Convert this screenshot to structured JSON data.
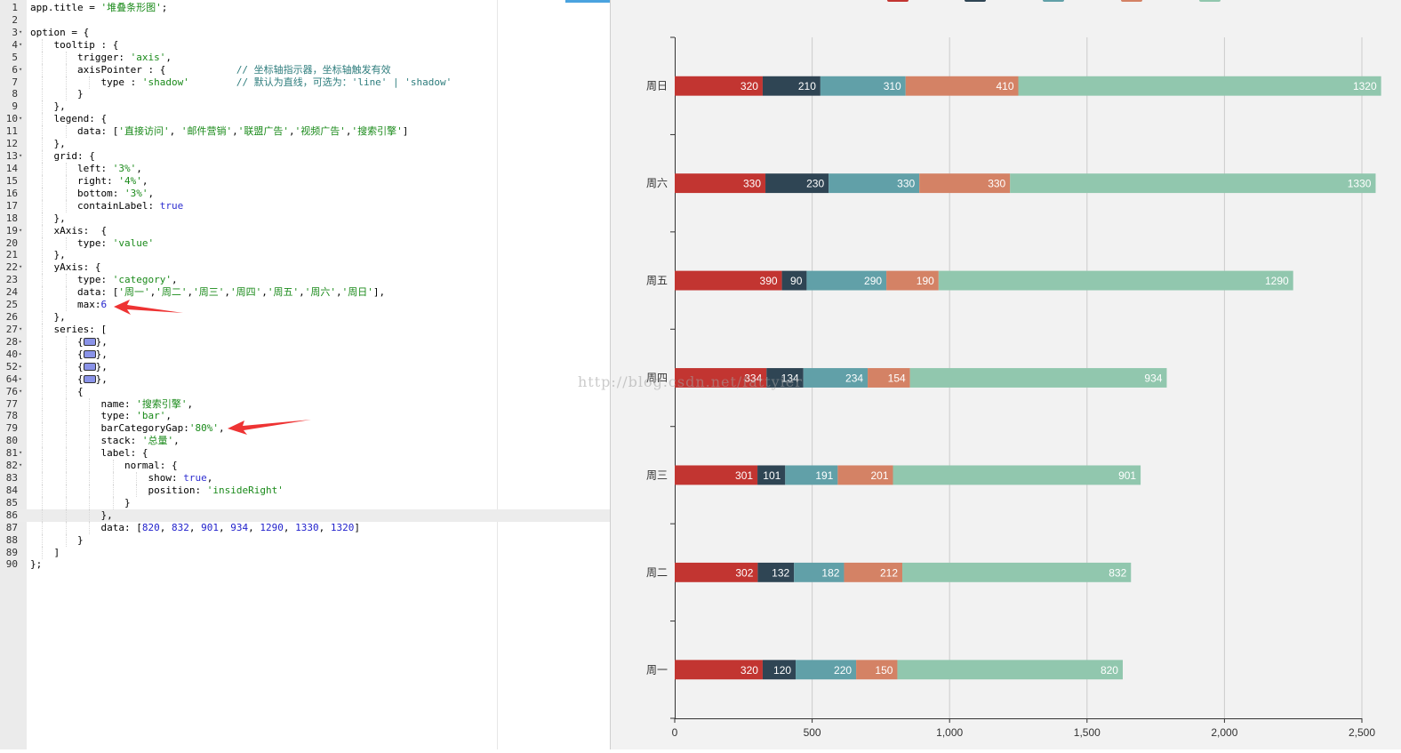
{
  "editor": {
    "lines": [
      {
        "n": "1",
        "fold": "",
        "ind": 0,
        "t": [
          {
            "x": "app.title = "
          },
          {
            "x": "'堆叠条形图'",
            "c": "s"
          },
          {
            "x": ";"
          }
        ]
      },
      {
        "n": "2",
        "fold": "",
        "ind": 0,
        "t": []
      },
      {
        "n": "3",
        "fold": "▾",
        "ind": 0,
        "t": [
          {
            "x": "option = {"
          }
        ]
      },
      {
        "n": "4",
        "fold": "▾",
        "ind": 1,
        "t": [
          {
            "x": "tooltip : {"
          }
        ]
      },
      {
        "n": "5",
        "fold": "",
        "ind": 2,
        "t": [
          {
            "x": "trigger: "
          },
          {
            "x": "'axis'",
            "c": "s"
          },
          {
            "x": ","
          }
        ]
      },
      {
        "n": "6",
        "fold": "▾",
        "ind": 2,
        "t": [
          {
            "x": "axisPointer : {            "
          },
          {
            "x": "// 坐标轴指示器，坐标轴触发有效",
            "c": "c"
          }
        ]
      },
      {
        "n": "7",
        "fold": "",
        "ind": 3,
        "t": [
          {
            "x": "type : "
          },
          {
            "x": "'shadow'",
            "c": "s"
          },
          {
            "x": "        "
          },
          {
            "x": "// 默认为直线，可选为：'line' | 'shadow'",
            "c": "c"
          }
        ]
      },
      {
        "n": "8",
        "fold": "",
        "ind": 2,
        "t": [
          {
            "x": "}"
          }
        ]
      },
      {
        "n": "9",
        "fold": "",
        "ind": 1,
        "t": [
          {
            "x": "},"
          }
        ]
      },
      {
        "n": "10",
        "fold": "▾",
        "ind": 1,
        "t": [
          {
            "x": "legend: {"
          }
        ]
      },
      {
        "n": "11",
        "fold": "",
        "ind": 2,
        "t": [
          {
            "x": "data: ["
          },
          {
            "x": "'直接访问'",
            "c": "s"
          },
          {
            "x": ", "
          },
          {
            "x": "'邮件营销'",
            "c": "s"
          },
          {
            "x": ","
          },
          {
            "x": "'联盟广告'",
            "c": "s"
          },
          {
            "x": ","
          },
          {
            "x": "'视频广告'",
            "c": "s"
          },
          {
            "x": ","
          },
          {
            "x": "'搜索引擎'",
            "c": "s"
          },
          {
            "x": "]"
          }
        ]
      },
      {
        "n": "12",
        "fold": "",
        "ind": 1,
        "t": [
          {
            "x": "},"
          }
        ]
      },
      {
        "n": "13",
        "fold": "▾",
        "ind": 1,
        "t": [
          {
            "x": "grid: {"
          }
        ]
      },
      {
        "n": "14",
        "fold": "",
        "ind": 2,
        "t": [
          {
            "x": "left: "
          },
          {
            "x": "'3%'",
            "c": "s"
          },
          {
            "x": ","
          }
        ]
      },
      {
        "n": "15",
        "fold": "",
        "ind": 2,
        "t": [
          {
            "x": "right: "
          },
          {
            "x": "'4%'",
            "c": "s"
          },
          {
            "x": ","
          }
        ]
      },
      {
        "n": "16",
        "fold": "",
        "ind": 2,
        "t": [
          {
            "x": "bottom: "
          },
          {
            "x": "'3%'",
            "c": "s"
          },
          {
            "x": ","
          }
        ]
      },
      {
        "n": "17",
        "fold": "",
        "ind": 2,
        "t": [
          {
            "x": "containLabel: "
          },
          {
            "x": "true",
            "c": "k"
          }
        ]
      },
      {
        "n": "18",
        "fold": "",
        "ind": 1,
        "t": [
          {
            "x": "},"
          }
        ]
      },
      {
        "n": "19",
        "fold": "▾",
        "ind": 1,
        "t": [
          {
            "x": "xAxis:  {"
          }
        ]
      },
      {
        "n": "20",
        "fold": "",
        "ind": 2,
        "t": [
          {
            "x": "type: "
          },
          {
            "x": "'value'",
            "c": "s"
          }
        ]
      },
      {
        "n": "21",
        "fold": "",
        "ind": 1,
        "t": [
          {
            "x": "},"
          }
        ]
      },
      {
        "n": "22",
        "fold": "▾",
        "ind": 1,
        "t": [
          {
            "x": "yAxis: {"
          }
        ]
      },
      {
        "n": "23",
        "fold": "",
        "ind": 2,
        "t": [
          {
            "x": "type: "
          },
          {
            "x": "'category'",
            "c": "s"
          },
          {
            "x": ","
          }
        ]
      },
      {
        "n": "24",
        "fold": "",
        "ind": 2,
        "t": [
          {
            "x": "data: ["
          },
          {
            "x": "'周一'",
            "c": "s"
          },
          {
            "x": ","
          },
          {
            "x": "'周二'",
            "c": "s"
          },
          {
            "x": ","
          },
          {
            "x": "'周三'",
            "c": "s"
          },
          {
            "x": ","
          },
          {
            "x": "'周四'",
            "c": "s"
          },
          {
            "x": ","
          },
          {
            "x": "'周五'",
            "c": "s"
          },
          {
            "x": ","
          },
          {
            "x": "'周六'",
            "c": "s"
          },
          {
            "x": ","
          },
          {
            "x": "'周日'",
            "c": "s"
          },
          {
            "x": "],"
          }
        ]
      },
      {
        "n": "25",
        "fold": "",
        "ind": 2,
        "t": [
          {
            "x": "max:"
          },
          {
            "x": "6",
            "c": "n"
          }
        ]
      },
      {
        "n": "26",
        "fold": "",
        "ind": 1,
        "t": [
          {
            "x": "},"
          }
        ]
      },
      {
        "n": "27",
        "fold": "▾",
        "ind": 1,
        "t": [
          {
            "x": "series: ["
          }
        ]
      },
      {
        "n": "28",
        "fold": "▸",
        "ind": 2,
        "t": [
          {
            "x": "{"
          },
          {
            "x": "",
            "c": "fw"
          },
          {
            "x": "},"
          }
        ]
      },
      {
        "n": "40",
        "fold": "▸",
        "ind": 2,
        "t": [
          {
            "x": "{"
          },
          {
            "x": "",
            "c": "fw"
          },
          {
            "x": "},"
          }
        ]
      },
      {
        "n": "52",
        "fold": "▸",
        "ind": 2,
        "t": [
          {
            "x": "{"
          },
          {
            "x": "",
            "c": "fw"
          },
          {
            "x": "},"
          }
        ]
      },
      {
        "n": "64",
        "fold": "▸",
        "ind": 2,
        "t": [
          {
            "x": "{"
          },
          {
            "x": "",
            "c": "fw"
          },
          {
            "x": "},"
          }
        ]
      },
      {
        "n": "76",
        "fold": "▾",
        "ind": 2,
        "t": [
          {
            "x": "{"
          }
        ]
      },
      {
        "n": "77",
        "fold": "",
        "ind": 3,
        "t": [
          {
            "x": "name: "
          },
          {
            "x": "'搜索引擎'",
            "c": "s"
          },
          {
            "x": ","
          }
        ]
      },
      {
        "n": "78",
        "fold": "",
        "ind": 3,
        "t": [
          {
            "x": "type: "
          },
          {
            "x": "'bar'",
            "c": "s"
          },
          {
            "x": ","
          }
        ]
      },
      {
        "n": "79",
        "fold": "",
        "ind": 3,
        "t": [
          {
            "x": "barCategoryGap:"
          },
          {
            "x": "'80%'",
            "c": "s"
          },
          {
            "x": ","
          }
        ]
      },
      {
        "n": "80",
        "fold": "",
        "ind": 3,
        "t": [
          {
            "x": "stack: "
          },
          {
            "x": "'总量'",
            "c": "s"
          },
          {
            "x": ","
          }
        ]
      },
      {
        "n": "81",
        "fold": "▾",
        "ind": 3,
        "t": [
          {
            "x": "label: {"
          }
        ]
      },
      {
        "n": "82",
        "fold": "▾",
        "ind": 4,
        "t": [
          {
            "x": "normal: {"
          }
        ]
      },
      {
        "n": "83",
        "fold": "",
        "ind": 5,
        "t": [
          {
            "x": "show: "
          },
          {
            "x": "true",
            "c": "k"
          },
          {
            "x": ","
          }
        ]
      },
      {
        "n": "84",
        "fold": "",
        "ind": 5,
        "t": [
          {
            "x": "position: "
          },
          {
            "x": "'insideRight'",
            "c": "s"
          }
        ]
      },
      {
        "n": "85",
        "fold": "",
        "ind": 4,
        "t": [
          {
            "x": "}"
          }
        ]
      },
      {
        "n": "86",
        "fold": "",
        "ind": 3,
        "t": [
          {
            "x": "},"
          }
        ],
        "active": true
      },
      {
        "n": "87",
        "fold": "",
        "ind": 3,
        "t": [
          {
            "x": "data: ["
          },
          {
            "x": "820",
            "c": "n"
          },
          {
            "x": ", "
          },
          {
            "x": "832",
            "c": "n"
          },
          {
            "x": ", "
          },
          {
            "x": "901",
            "c": "n"
          },
          {
            "x": ", "
          },
          {
            "x": "934",
            "c": "n"
          },
          {
            "x": ", "
          },
          {
            "x": "1290",
            "c": "n"
          },
          {
            "x": ", "
          },
          {
            "x": "1330",
            "c": "n"
          },
          {
            "x": ", "
          },
          {
            "x": "1320",
            "c": "n"
          },
          {
            "x": "]"
          }
        ]
      },
      {
        "n": "88",
        "fold": "",
        "ind": 2,
        "t": [
          {
            "x": "}"
          }
        ]
      },
      {
        "n": "89",
        "fold": "",
        "ind": 1,
        "t": [
          {
            "x": "]"
          }
        ]
      },
      {
        "n": "90",
        "fold": "",
        "ind": 0,
        "t": [
          {
            "x": "};"
          }
        ]
      }
    ]
  },
  "watermark": "http://blog.csdn.net/fattyier",
  "chart_data": {
    "type": "bar",
    "orientation": "horizontal",
    "stacked": true,
    "categories": [
      "周一",
      "周二",
      "周三",
      "周四",
      "周五",
      "周六",
      "周日"
    ],
    "xlim": [
      0,
      2500
    ],
    "xticks": [
      0,
      500,
      1000,
      1500,
      2000,
      2500
    ],
    "xtick_labels": [
      "0",
      "500",
      "1,000",
      "1,500",
      "2,000",
      "2,500"
    ],
    "grid": true,
    "legend_position": "top (cut off)",
    "series": [
      {
        "color": "#c23531",
        "values": [
          320,
          302,
          301,
          334,
          390,
          330,
          320
        ]
      },
      {
        "color": "#2f4554",
        "values": [
          120,
          132,
          101,
          134,
          90,
          230,
          210
        ]
      },
      {
        "color": "#61a0a8",
        "values": [
          220,
          182,
          191,
          234,
          290,
          330,
          310
        ]
      },
      {
        "color": "#d48265",
        "values": [
          150,
          212,
          201,
          154,
          190,
          330,
          410
        ]
      },
      {
        "color": "#91c7ae",
        "values": [
          820,
          832,
          901,
          934,
          1290,
          1330,
          1320
        ]
      }
    ]
  }
}
